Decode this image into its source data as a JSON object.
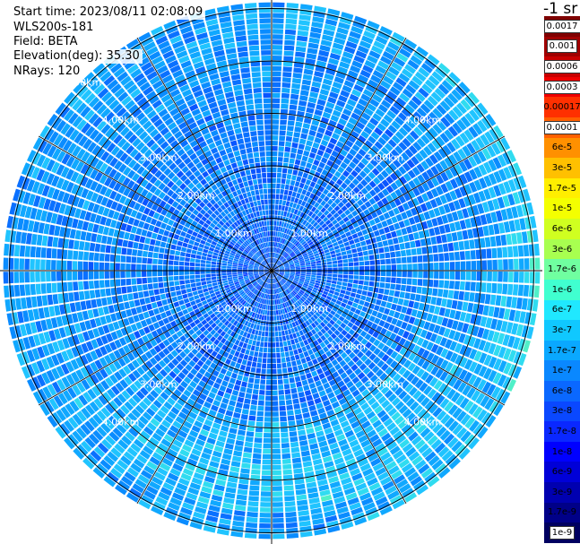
{
  "info": {
    "start_time": "Start time: 2023/08/11 02:08:09",
    "instrument": "WLS200s-181",
    "field": "Field: BETA",
    "elevation": "Elevation(deg): 35.30",
    "nrays": "NRays: 120"
  },
  "colorbar": {
    "title": "-1 sr",
    "labels": [
      "0.0017",
      "0.001",
      "0.0006",
      "0.0003",
      "0.00017",
      "0.0001",
      "6e-5",
      "3e-5",
      "1.7e-5",
      "1e-5",
      "6e-6",
      "3e-6",
      "1.7e-6",
      "1e-6",
      "6e-7",
      "3e-7",
      "1.7e-7",
      "1e-7",
      "6e-8",
      "3e-8",
      "1.7e-8",
      "1e-8",
      "6e-9",
      "3e-9",
      "1.7e-9",
      "1e-9"
    ],
    "colors": [
      "#7f0000",
      "#a00000",
      "#c80000",
      "#f00000",
      "#ff3000",
      "#ff6000",
      "#ff9000",
      "#ffc000",
      "#ffee00",
      "#f4ff00",
      "#d0ff20",
      "#a8ff50",
      "#70ffa0",
      "#40ffd0",
      "#20e8ff",
      "#10c8ff",
      "#0aa8ff",
      "#0a88ff",
      "#0a68ff",
      "#0a48ff",
      "#0a28ff",
      "#0000ff",
      "#0000d8",
      "#0000b0",
      "#000088",
      "#000060"
    ],
    "boxed": [
      true,
      true,
      true,
      true,
      false,
      true,
      false,
      false,
      false,
      false,
      false,
      false,
      false,
      false,
      false,
      false,
      false,
      false,
      false,
      false,
      false,
      false,
      false,
      false,
      false,
      true
    ]
  },
  "range_labels": [
    "1.00km",
    "2.00km",
    "3.00km",
    "4.00km",
    "5.00km"
  ],
  "chart_data": {
    "type": "heatmap",
    "projection": "polar (PPI scan)",
    "field": "BETA",
    "n_rays": 120,
    "elevation_deg": 35.3,
    "range_rings_km": [
      1,
      2,
      3,
      4,
      5
    ],
    "color_scale": "log",
    "value_range": [
      1e-09,
      0.0017
    ],
    "unit": "-1 sr"
  }
}
